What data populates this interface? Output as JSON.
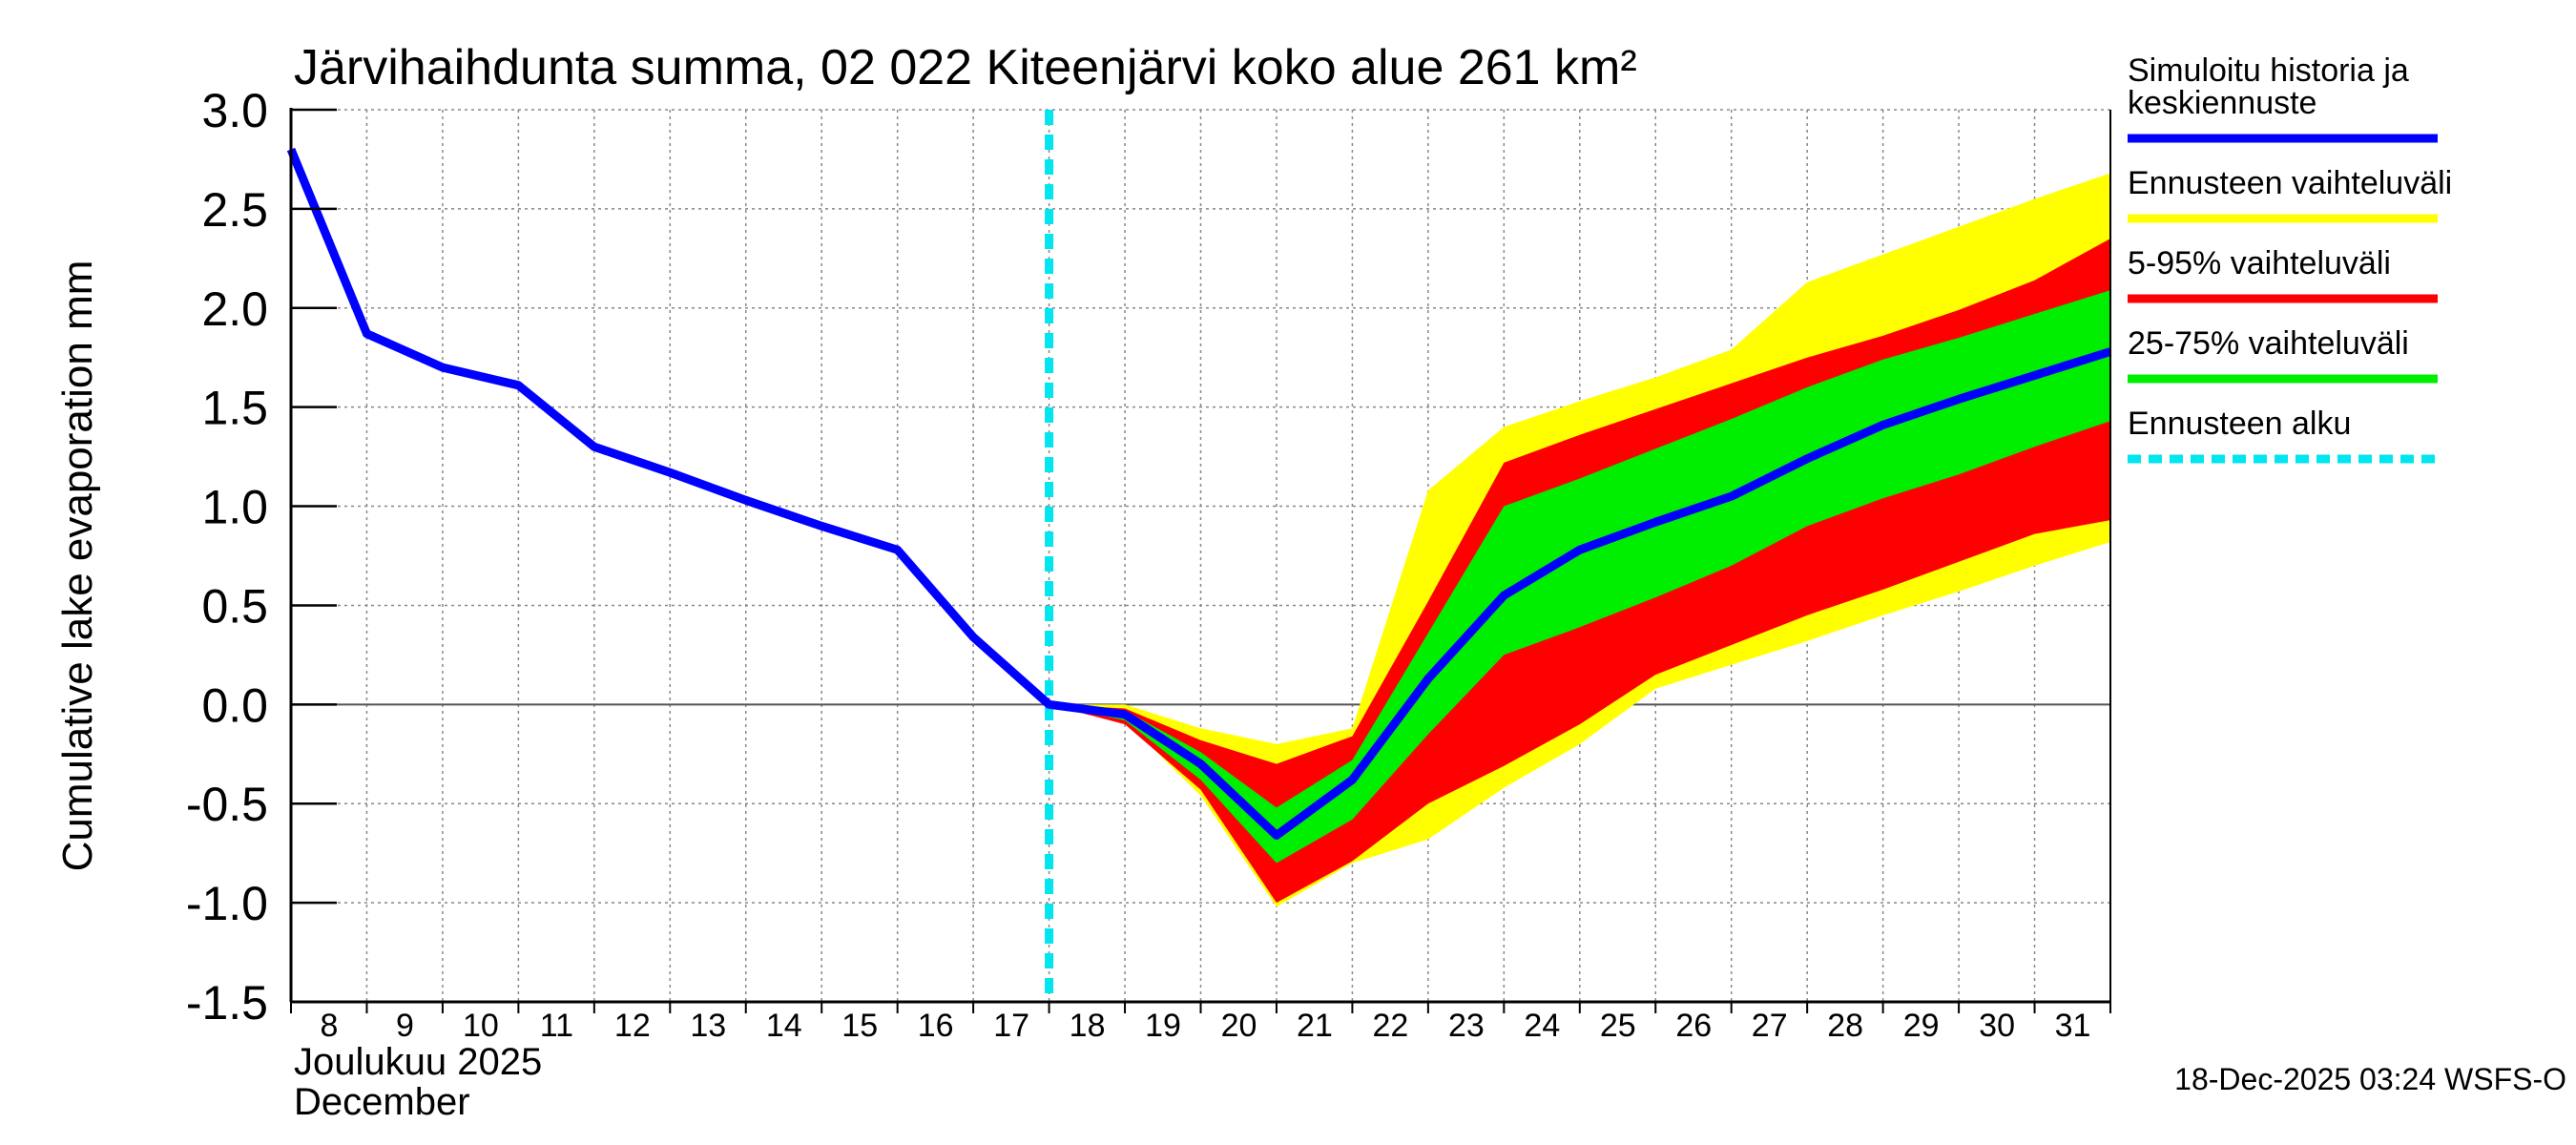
{
  "chart_data": {
    "type": "line",
    "title": "Järvihaihdunta summa, 02 022 Kiteenjärvi koko alue 261 km²",
    "ylabel": "Cumulative lake evaporation   mm",
    "xlabel_lines": [
      "Joulukuu  2025",
      "December"
    ],
    "footer": "18-Dec-2025 03:24 WSFS-O",
    "ylim": [
      -1.5,
      3.0
    ],
    "yticks": [
      {
        "v": 3.0,
        "label": "3.0"
      },
      {
        "v": 2.5,
        "label": "2.5"
      },
      {
        "v": 2.0,
        "label": "2.0"
      },
      {
        "v": 1.5,
        "label": "1.5"
      },
      {
        "v": 1.0,
        "label": "1.0"
      },
      {
        "v": 0.5,
        "label": "0.5"
      },
      {
        "v": 0.0,
        "label": "0.0"
      },
      {
        "v": -0.5,
        "label": "-0.5"
      },
      {
        "v": -1.0,
        "label": "-1.0"
      },
      {
        "v": -1.5,
        "label": "-1.5"
      }
    ],
    "xlim": [
      8,
      32
    ],
    "xtick_labels": [
      "8",
      "9",
      "10",
      "11",
      "12",
      "13",
      "14",
      "15",
      "16",
      "17",
      "18",
      "19",
      "20",
      "21",
      "22",
      "23",
      "24",
      "25",
      "26",
      "27",
      "28",
      "29",
      "30",
      "31"
    ],
    "forecast_start_x": 18,
    "colors": {
      "history": "#0000ff",
      "range_full": "#ffff00",
      "range_5_95": "#ff0000",
      "range_25_75": "#00ee00",
      "forecast_start": "#00e5ee"
    },
    "history_x": [
      8,
      9,
      10,
      11,
      12,
      13,
      14,
      15,
      16,
      17,
      18
    ],
    "history_y": [
      2.8,
      1.87,
      1.7,
      1.61,
      1.3,
      1.17,
      1.03,
      0.9,
      0.78,
      0.34,
      0.0
    ],
    "forecast_x": [
      18,
      19,
      20,
      21,
      22,
      23,
      24,
      25,
      26,
      27,
      28,
      29,
      30,
      31,
      32
    ],
    "median": [
      0.0,
      -0.05,
      -0.3,
      -0.66,
      -0.38,
      0.13,
      0.55,
      0.78,
      0.92,
      1.05,
      1.24,
      1.41,
      1.54,
      1.66,
      1.78
    ],
    "band_full": {
      "lower": [
        0.0,
        -0.08,
        -0.46,
        -1.02,
        -0.8,
        -0.68,
        -0.42,
        -0.2,
        0.08,
        0.2,
        0.32,
        0.45,
        0.57,
        0.7,
        0.82
      ],
      "upper": [
        0.0,
        0.0,
        -0.12,
        -0.2,
        -0.12,
        1.08,
        1.4,
        1.53,
        1.65,
        1.79,
        2.13,
        2.27,
        2.41,
        2.55,
        2.68
      ]
    },
    "band_5_95": {
      "lower": [
        0.0,
        -0.1,
        -0.43,
        -1.0,
        -0.79,
        -0.5,
        -0.31,
        -0.1,
        0.15,
        0.3,
        0.45,
        0.58,
        0.72,
        0.86,
        0.93
      ],
      "upper": [
        0.0,
        -0.02,
        -0.18,
        -0.3,
        -0.16,
        0.52,
        1.22,
        1.36,
        1.49,
        1.62,
        1.75,
        1.86,
        1.99,
        2.14,
        2.35
      ]
    },
    "band_25_75": {
      "lower": [
        0.0,
        -0.08,
        -0.38,
        -0.8,
        -0.58,
        -0.15,
        0.25,
        0.39,
        0.54,
        0.7,
        0.9,
        1.04,
        1.16,
        1.3,
        1.43
      ],
      "upper": [
        0.0,
        -0.03,
        -0.24,
        -0.52,
        -0.28,
        0.36,
        1.0,
        1.14,
        1.29,
        1.44,
        1.6,
        1.74,
        1.85,
        1.97,
        2.09
      ]
    },
    "legend": [
      {
        "label": "Simuloitu historia ja keskiennuste",
        "lines": [
          "Simuloitu historia ja",
          "keskiennuste"
        ],
        "color": "#0000ff",
        "style": "solid"
      },
      {
        "label": "Ennusteen vaihteluväli",
        "lines": [
          "Ennusteen vaihteluväli"
        ],
        "color": "#ffff00",
        "style": "solid"
      },
      {
        "label": "5-95% vaihteluväli",
        "lines": [
          "5-95% vaihteluväli"
        ],
        "color": "#ff0000",
        "style": "solid"
      },
      {
        "label": "25-75% vaihteluväli",
        "lines": [
          "25-75% vaihteluväli"
        ],
        "color": "#00ee00",
        "style": "solid"
      },
      {
        "label": "Ennusteen alku",
        "lines": [
          "Ennusteen alku"
        ],
        "color": "#00e5ee",
        "style": "dashed"
      }
    ]
  }
}
